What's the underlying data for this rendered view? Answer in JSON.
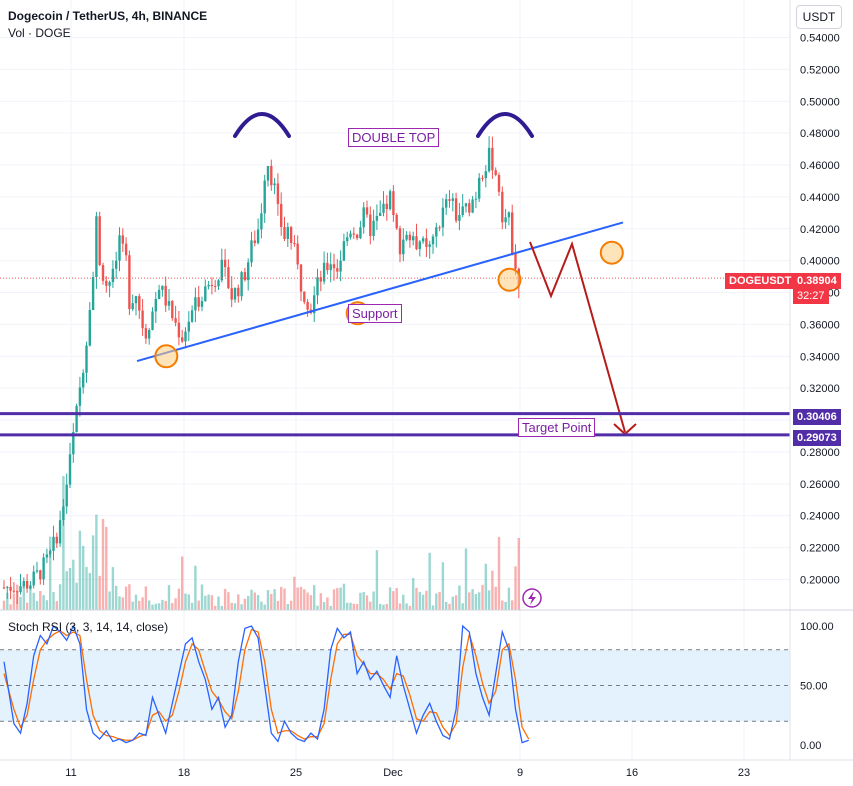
{
  "header": {
    "title": "Dogecoin / TetherUS, 4h, BINANCE",
    "volume_label": "Vol · DOGE",
    "currency_button": "USDT"
  },
  "indicator": {
    "label": "Stoch RSI (3, 3, 14, 14, close)"
  },
  "annotations": {
    "double_top": "DOUBLE TOP",
    "support": "Support",
    "target_point": "Target Point"
  },
  "price_tags": {
    "symbol": "DOGEUSDT",
    "last_price": "0.38904",
    "countdown": "32:27",
    "level_1": "0.30406",
    "level_2": "0.29073"
  },
  "colors": {
    "up": "#26a69a",
    "down": "#ef5350",
    "trendline": "#2962ff",
    "levels": "#512da8",
    "arrow": "#b71c1c",
    "circle_fill": "#ffcc80",
    "circle_stroke": "#f57c00",
    "double_top_arc": "#311b92",
    "stoch_k": "#2962ff",
    "stoch_d": "#ff6d00",
    "stoch_band": "#e3f2fd"
  },
  "chart_data": {
    "type": "candlestick",
    "symbol": "DOGEUSDT",
    "timeframe": "4h",
    "y_axis": {
      "min": 0.19,
      "max": 0.545,
      "ticks": [
        "0.20000",
        "0.22000",
        "0.24000",
        "0.26000",
        "0.28000",
        "0.30000",
        "0.32000",
        "0.34000",
        "0.36000",
        "0.38000",
        "0.40000",
        "0.42000",
        "0.44000",
        "0.46000",
        "0.48000",
        "0.50000",
        "0.52000",
        "0.54000"
      ]
    },
    "x_axis": {
      "ticks": [
        "11",
        "18",
        "25",
        "Dec",
        "9",
        "16",
        "23"
      ]
    },
    "price_path": [
      [
        0,
        0.195
      ],
      [
        4,
        0.196
      ],
      [
        8,
        0.198
      ],
      [
        11,
        0.205
      ],
      [
        14,
        0.215
      ],
      [
        17,
        0.235
      ],
      [
        19,
        0.26
      ],
      [
        21,
        0.29
      ],
      [
        23,
        0.32
      ],
      [
        25,
        0.35
      ],
      [
        26,
        0.375
      ],
      [
        27,
        0.39
      ],
      [
        28,
        0.425
      ],
      [
        29,
        0.4
      ],
      [
        31,
        0.385
      ],
      [
        33,
        0.39
      ],
      [
        35,
        0.41
      ],
      [
        37,
        0.4
      ],
      [
        38,
        0.375
      ],
      [
        40,
        0.38
      ],
      [
        42,
        0.36
      ],
      [
        43,
        0.355
      ],
      [
        45,
        0.368
      ],
      [
        47,
        0.385
      ],
      [
        49,
        0.375
      ],
      [
        52,
        0.36
      ],
      [
        54,
        0.352
      ],
      [
        56,
        0.363
      ],
      [
        58,
        0.372
      ],
      [
        60,
        0.38
      ],
      [
        62,
        0.385
      ],
      [
        64,
        0.39
      ],
      [
        66,
        0.395
      ],
      [
        68,
        0.385
      ],
      [
        69,
        0.378
      ],
      [
        71,
        0.383
      ],
      [
        73,
        0.392
      ],
      [
        75,
        0.408
      ],
      [
        77,
        0.42
      ],
      [
        78,
        0.433
      ],
      [
        79,
        0.455
      ],
      [
        80,
        0.462
      ],
      [
        81,
        0.453
      ],
      [
        82,
        0.445
      ],
      [
        83,
        0.43
      ],
      [
        85,
        0.415
      ],
      [
        86,
        0.42
      ],
      [
        88,
        0.405
      ],
      [
        90,
        0.385
      ],
      [
        92,
        0.375
      ],
      [
        93,
        0.37
      ],
      [
        95,
        0.385
      ],
      [
        97,
        0.393
      ],
      [
        99,
        0.4
      ],
      [
        101,
        0.395
      ],
      [
        103,
        0.41
      ],
      [
        105,
        0.42
      ],
      [
        107,
        0.418
      ],
      [
        109,
        0.428
      ],
      [
        111,
        0.42
      ],
      [
        113,
        0.425
      ],
      [
        115,
        0.43
      ],
      [
        117,
        0.44
      ],
      [
        118,
        0.425
      ],
      [
        120,
        0.41
      ],
      [
        122,
        0.418
      ],
      [
        124,
        0.41
      ],
      [
        126,
        0.413
      ],
      [
        128,
        0.405
      ],
      [
        130,
        0.41
      ],
      [
        131,
        0.42
      ],
      [
        133,
        0.43
      ],
      [
        135,
        0.44
      ],
      [
        137,
        0.428
      ],
      [
        139,
        0.43
      ],
      [
        141,
        0.435
      ],
      [
        143,
        0.442
      ],
      [
        144,
        0.455
      ],
      [
        146,
        0.46
      ],
      [
        147,
        0.465
      ],
      [
        148,
        0.462
      ],
      [
        150,
        0.445
      ],
      [
        151,
        0.43
      ],
      [
        153,
        0.425
      ],
      [
        154,
        0.41
      ],
      [
        156,
        0.389
      ]
    ],
    "stoch_rsi": {
      "range": [
        0,
        100
      ],
      "ticks": [
        "100.00",
        "50.00",
        "0.00"
      ],
      "bands": [
        80,
        20
      ],
      "k": [
        [
          0,
          70
        ],
        [
          3,
          18
        ],
        [
          5,
          10
        ],
        [
          7,
          35
        ],
        [
          9,
          75
        ],
        [
          11,
          92
        ],
        [
          13,
          85
        ],
        [
          15,
          100
        ],
        [
          17,
          95
        ],
        [
          19,
          88
        ],
        [
          21,
          100
        ],
        [
          23,
          85
        ],
        [
          25,
          30
        ],
        [
          27,
          10
        ],
        [
          29,
          5
        ],
        [
          31,
          12
        ],
        [
          33,
          3
        ],
        [
          35,
          5
        ],
        [
          37,
          2
        ],
        [
          39,
          4
        ],
        [
          41,
          10
        ],
        [
          43,
          8
        ],
        [
          45,
          40
        ],
        [
          47,
          25
        ],
        [
          49,
          10
        ],
        [
          51,
          35
        ],
        [
          53,
          60
        ],
        [
          55,
          85
        ],
        [
          57,
          90
        ],
        [
          59,
          70
        ],
        [
          61,
          55
        ],
        [
          63,
          30
        ],
        [
          65,
          40
        ],
        [
          67,
          15
        ],
        [
          69,
          25
        ],
        [
          71,
          70
        ],
        [
          73,
          98
        ],
        [
          75,
          100
        ],
        [
          77,
          90
        ],
        [
          79,
          50
        ],
        [
          81,
          10
        ],
        [
          83,
          3
        ],
        [
          85,
          20
        ],
        [
          87,
          10
        ],
        [
          89,
          5
        ],
        [
          91,
          3
        ],
        [
          93,
          10
        ],
        [
          95,
          5
        ],
        [
          97,
          30
        ],
        [
          99,
          80
        ],
        [
          101,
          98
        ],
        [
          103,
          90
        ],
        [
          105,
          95
        ],
        [
          107,
          60
        ],
        [
          109,
          70
        ],
        [
          111,
          55
        ],
        [
          113,
          62
        ],
        [
          115,
          50
        ],
        [
          117,
          40
        ],
        [
          119,
          75
        ],
        [
          121,
          50
        ],
        [
          123,
          30
        ],
        [
          125,
          10
        ],
        [
          127,
          25
        ],
        [
          129,
          35
        ],
        [
          131,
          20
        ],
        [
          133,
          8
        ],
        [
          135,
          5
        ],
        [
          137,
          30
        ],
        [
          139,
          100
        ],
        [
          141,
          95
        ],
        [
          143,
          60
        ],
        [
          145,
          40
        ],
        [
          147,
          25
        ],
        [
          149,
          60
        ],
        [
          151,
          95
        ],
        [
          153,
          80
        ],
        [
          155,
          30
        ],
        [
          157,
          2
        ],
        [
          159,
          4
        ]
      ],
      "d": [
        [
          0,
          60
        ],
        [
          3,
          30
        ],
        [
          5,
          15
        ],
        [
          7,
          25
        ],
        [
          9,
          55
        ],
        [
          11,
          80
        ],
        [
          13,
          88
        ],
        [
          15,
          93
        ],
        [
          17,
          96
        ],
        [
          19,
          92
        ],
        [
          21,
          95
        ],
        [
          23,
          92
        ],
        [
          25,
          55
        ],
        [
          27,
          25
        ],
        [
          29,
          12
        ],
        [
          31,
          8
        ],
        [
          33,
          7
        ],
        [
          35,
          5
        ],
        [
          37,
          4
        ],
        [
          39,
          4
        ],
        [
          41,
          7
        ],
        [
          43,
          9
        ],
        [
          45,
          25
        ],
        [
          47,
          28
        ],
        [
          49,
          20
        ],
        [
          51,
          25
        ],
        [
          53,
          45
        ],
        [
          55,
          70
        ],
        [
          57,
          85
        ],
        [
          59,
          80
        ],
        [
          61,
          62
        ],
        [
          63,
          45
        ],
        [
          65,
          38
        ],
        [
          67,
          28
        ],
        [
          69,
          22
        ],
        [
          71,
          45
        ],
        [
          73,
          80
        ],
        [
          75,
          97
        ],
        [
          77,
          95
        ],
        [
          79,
          70
        ],
        [
          81,
          30
        ],
        [
          83,
          10
        ],
        [
          85,
          12
        ],
        [
          87,
          12
        ],
        [
          89,
          8
        ],
        [
          91,
          5
        ],
        [
          93,
          7
        ],
        [
          95,
          7
        ],
        [
          97,
          18
        ],
        [
          99,
          55
        ],
        [
          101,
          85
        ],
        [
          103,
          93
        ],
        [
          105,
          93
        ],
        [
          107,
          75
        ],
        [
          109,
          68
        ],
        [
          111,
          60
        ],
        [
          113,
          60
        ],
        [
          115,
          55
        ],
        [
          117,
          47
        ],
        [
          119,
          60
        ],
        [
          121,
          58
        ],
        [
          123,
          42
        ],
        [
          125,
          22
        ],
        [
          127,
          20
        ],
        [
          129,
          28
        ],
        [
          131,
          27
        ],
        [
          133,
          15
        ],
        [
          135,
          8
        ],
        [
          137,
          18
        ],
        [
          139,
          65
        ],
        [
          141,
          93
        ],
        [
          143,
          75
        ],
        [
          145,
          52
        ],
        [
          147,
          35
        ],
        [
          149,
          45
        ],
        [
          151,
          80
        ],
        [
          153,
          85
        ],
        [
          155,
          55
        ],
        [
          157,
          15
        ],
        [
          159,
          5
        ]
      ]
    },
    "drawings": {
      "support_line": [
        [
          0.337,
          21
        ],
        [
          0.424,
          218
        ]
      ],
      "touch_points": [
        [
          21,
          0.34
        ],
        [
          79,
          0.367
        ],
        [
          125,
          0.388
        ],
        [
          156,
          0.405
        ]
      ],
      "double_top_arcs": [
        [
          80,
          0.483
        ],
        [
          143,
          0.483
        ]
      ],
      "projection_path": [
        [
          156,
          0.41
        ],
        [
          159,
          0.38
        ],
        [
          163,
          0.412
        ],
        [
          173,
          0.293
        ]
      ],
      "horizontal_levels": [
        0.30406,
        0.29073
      ]
    }
  }
}
